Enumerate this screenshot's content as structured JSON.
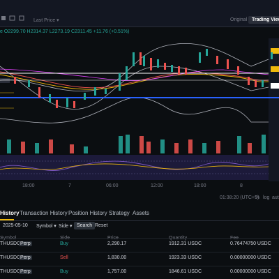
{
  "toolbar": {
    "last_price": "Last Price ▾",
    "original": "Original",
    "trading_view": "Trading View"
  },
  "chart": {
    "ohlc": "e  O2299.70 H2314.37 L2273.19 C2311.45 +11.76 (+0.51%)",
    "time_labels": [
      "18:00",
      "7",
      "06:00",
      "12:00",
      "18:00",
      "8"
    ],
    "clock": "01:38:20 (UTC+9)",
    "percent": "%",
    "log": "log",
    "auto": "auto"
  },
  "tabs": [
    "History",
    "Transaction History",
    "Position History",
    "Strategy",
    "Assets"
  ],
  "filters": {
    "date": "2025-05-10",
    "symbol": "Symbol ▾",
    "side": "Side ▾",
    "search": "Search",
    "reset": "Reset"
  },
  "table": {
    "headers": [
      "Symbol",
      "Side",
      "Price",
      "Quantity",
      "Fee"
    ],
    "rows": [
      [
        "THUSDC",
        "Perp",
        "Buy",
        "2,290.17",
        "1912.31 USDC",
        "0.76474750 USDC"
      ],
      [
        "THUSDC",
        "Perp",
        "Sell",
        "1,830.00",
        "1923.33 USDC",
        "0.00000000 USDC"
      ],
      [
        "THUSDC",
        "Perp",
        "Buy",
        "1,757.00",
        "1846.61 USDC",
        "0.00000000 USDC"
      ]
    ]
  }
}
